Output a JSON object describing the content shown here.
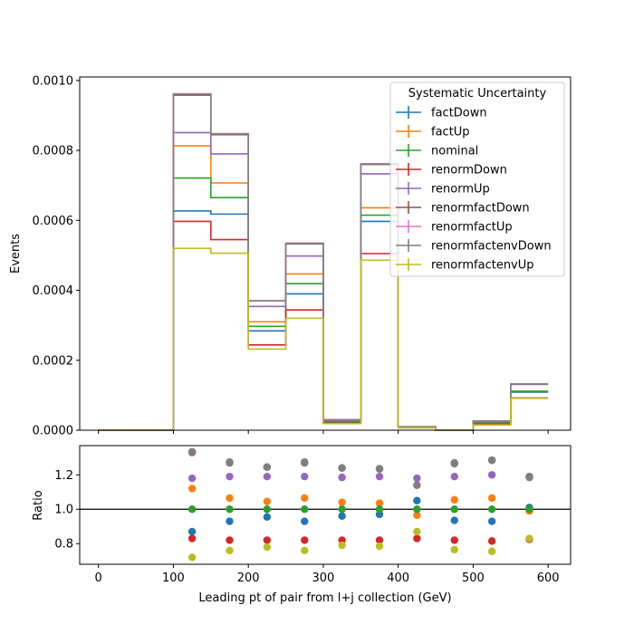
{
  "chart_data": {
    "type": "step-histogram-with-ratio",
    "xlabel": "Leading pt of pair from l+j collection (GeV)",
    "ylabel_top": "Events",
    "ylabel_bottom": "Ratio",
    "legend_title": "Systematic Uncertainty",
    "legend_position": "upper-right",
    "xlim": [
      -25,
      630
    ],
    "ylim_top": [
      0,
      0.00101
    ],
    "ylim_bottom": [
      0.68,
      1.37
    ],
    "x_ticks": [
      0,
      100,
      200,
      300,
      400,
      500,
      600
    ],
    "x_tick_labels": [
      "0",
      "100",
      "200",
      "300",
      "400",
      "500",
      "600"
    ],
    "y_ticks_top": [
      0,
      0.0002,
      0.0004,
      0.0006,
      0.0008,
      0.001
    ],
    "y_tick_labels_top": [
      "0.0000",
      "0.0002",
      "0.0004",
      "0.0006",
      "0.0008",
      "0.0010"
    ],
    "y_ticks_bottom": [
      0.8,
      1.0,
      1.2
    ],
    "y_tick_labels_bottom": [
      "0.8",
      "1.0",
      "1.2"
    ],
    "bin_edges": [
      0,
      50,
      100,
      150,
      200,
      250,
      300,
      350,
      400,
      450,
      500,
      550,
      600
    ],
    "ratio_x": [
      125,
      175,
      225,
      275,
      325,
      375,
      425,
      475,
      525,
      575
    ],
    "series": [
      {
        "name": "factDown",
        "color": "#1f77b4",
        "values": [
          0,
          0,
          0.000627,
          0.000618,
          0.000284,
          0.00039,
          2.4e-05,
          0.000597,
          8e-06,
          0,
          1.9e-05,
          0.000109
        ],
        "ratio": [
          0.87,
          0.93,
          0.955,
          0.93,
          0.96,
          0.97,
          1.05,
          0.935,
          0.93,
          1.01
        ]
      },
      {
        "name": "factUp",
        "color": "#ff7f0e",
        "values": [
          0,
          0,
          0.000813,
          0.000707,
          0.00031,
          0.000447,
          2.5e-05,
          0.000636,
          8e-06,
          0,
          2.2e-05,
          0.000112
        ],
        "ratio": [
          1.12,
          1.065,
          1.045,
          1.065,
          1.04,
          1.035,
          0.965,
          1.055,
          1.065,
          0.99
        ]
      },
      {
        "name": "nominal",
        "color": "#2ca02c",
        "values": [
          0,
          0,
          0.000721,
          0.000665,
          0.000297,
          0.000419,
          2.4e-05,
          0.000615,
          8e-06,
          0,
          2e-05,
          0.000111
        ],
        "ratio": [
          1.0,
          1.0,
          1.0,
          1.0,
          1.0,
          1.0,
          1.0,
          1.0,
          1.0,
          1.0
        ]
      },
      {
        "name": "renormDown",
        "color": "#d62728",
        "values": [
          0,
          0,
          0.000597,
          0.000545,
          0.000244,
          0.000344,
          2e-05,
          0.000505,
          7e-06,
          0,
          1.7e-05,
          9.2e-05
        ],
        "ratio": [
          0.83,
          0.82,
          0.82,
          0.82,
          0.82,
          0.82,
          0.83,
          0.82,
          0.815,
          0.825
        ]
      },
      {
        "name": "renormUp",
        "color": "#9467bd",
        "values": [
          0,
          0,
          0.000851,
          0.00079,
          0.000354,
          0.000498,
          2.8e-05,
          0.000733,
          9e-06,
          0,
          2.4e-05,
          0.000131
        ],
        "ratio": [
          1.18,
          1.19,
          1.19,
          1.19,
          1.185,
          1.19,
          1.18,
          1.19,
          1.2,
          1.185
        ]
      },
      {
        "name": "renormfactDown",
        "color": "#8c564b",
        "values": [
          0,
          0,
          0.000958,
          0.000845,
          0.00037,
          0.000533,
          3e-05,
          0.00076,
          1e-05,
          0,
          2.6e-05,
          0.000132
        ],
        "ratio": [
          1.33,
          1.27,
          1.245,
          1.27,
          1.24,
          1.235,
          1.14,
          1.265,
          1.285,
          1.19
        ]
      },
      {
        "name": "renormfactUp",
        "color": "#e377c2",
        "values": [
          0,
          0,
          0.000962,
          0.000848,
          0.00037,
          0.000535,
          3e-05,
          0.000762,
          1e-05,
          0,
          2.6e-05,
          0.000132
        ],
        "ratio": [
          1.335,
          1.275,
          1.245,
          1.275,
          1.24,
          1.235,
          1.14,
          1.27,
          1.285,
          1.19
        ]
      },
      {
        "name": "renormfactenvDown",
        "color": "#7f7f7f",
        "values": [
          0,
          0,
          0.000961,
          0.000847,
          0.00037,
          0.000534,
          3e-05,
          0.000761,
          1e-05,
          0,
          2.6e-05,
          0.000132
        ],
        "ratio": [
          1.333,
          1.273,
          1.245,
          1.273,
          1.24,
          1.235,
          1.14,
          1.268,
          1.285,
          1.19
        ]
      },
      {
        "name": "renormfactenvUp",
        "color": "#bcbd22",
        "values": [
          0,
          0,
          0.00052,
          0.000506,
          0.000232,
          0.00032,
          1.9e-05,
          0.000486,
          7e-06,
          0,
          1.5e-05,
          9.1e-05
        ],
        "ratio": [
          0.72,
          0.76,
          0.78,
          0.76,
          0.79,
          0.785,
          0.87,
          0.765,
          0.755,
          0.83
        ]
      }
    ]
  }
}
